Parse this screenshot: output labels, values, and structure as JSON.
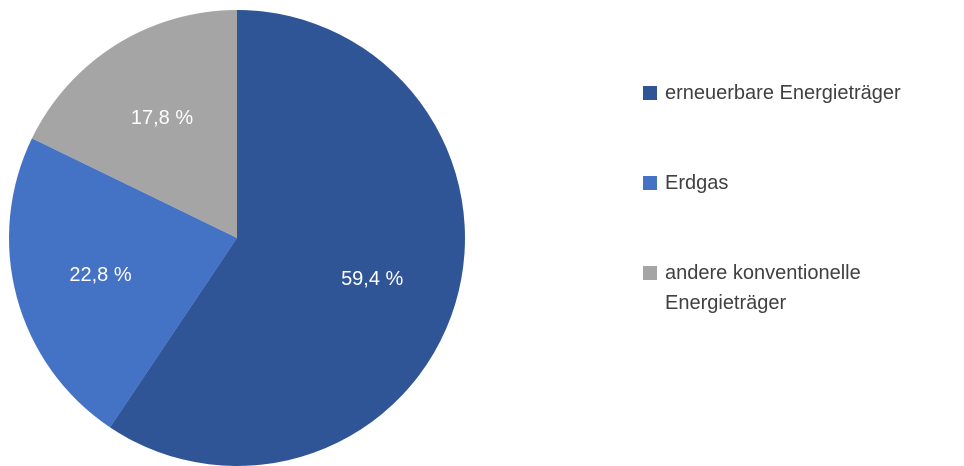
{
  "chart_data": {
    "type": "pie",
    "title": "",
    "start_angle_deg": 0,
    "direction": "clockwise",
    "legend_position": "right",
    "slices": [
      {
        "label": "erneuerbare Energieträger",
        "value": 59.4,
        "display": "59,4 %",
        "color": "#2f5597",
        "legend_lines": [
          "erneuerbare Energieträger"
        ]
      },
      {
        "label": "Erdgas",
        "value": 22.8,
        "display": "22,8 %",
        "color": "#4472c4",
        "legend_lines": [
          "Erdgas"
        ]
      },
      {
        "label": "andere konventionelle Energieträger",
        "value": 17.8,
        "display": "17,8 %",
        "color": "#a5a5a5",
        "legend_lines": [
          "andere konventionelle",
          "Energieträger"
        ]
      }
    ]
  }
}
